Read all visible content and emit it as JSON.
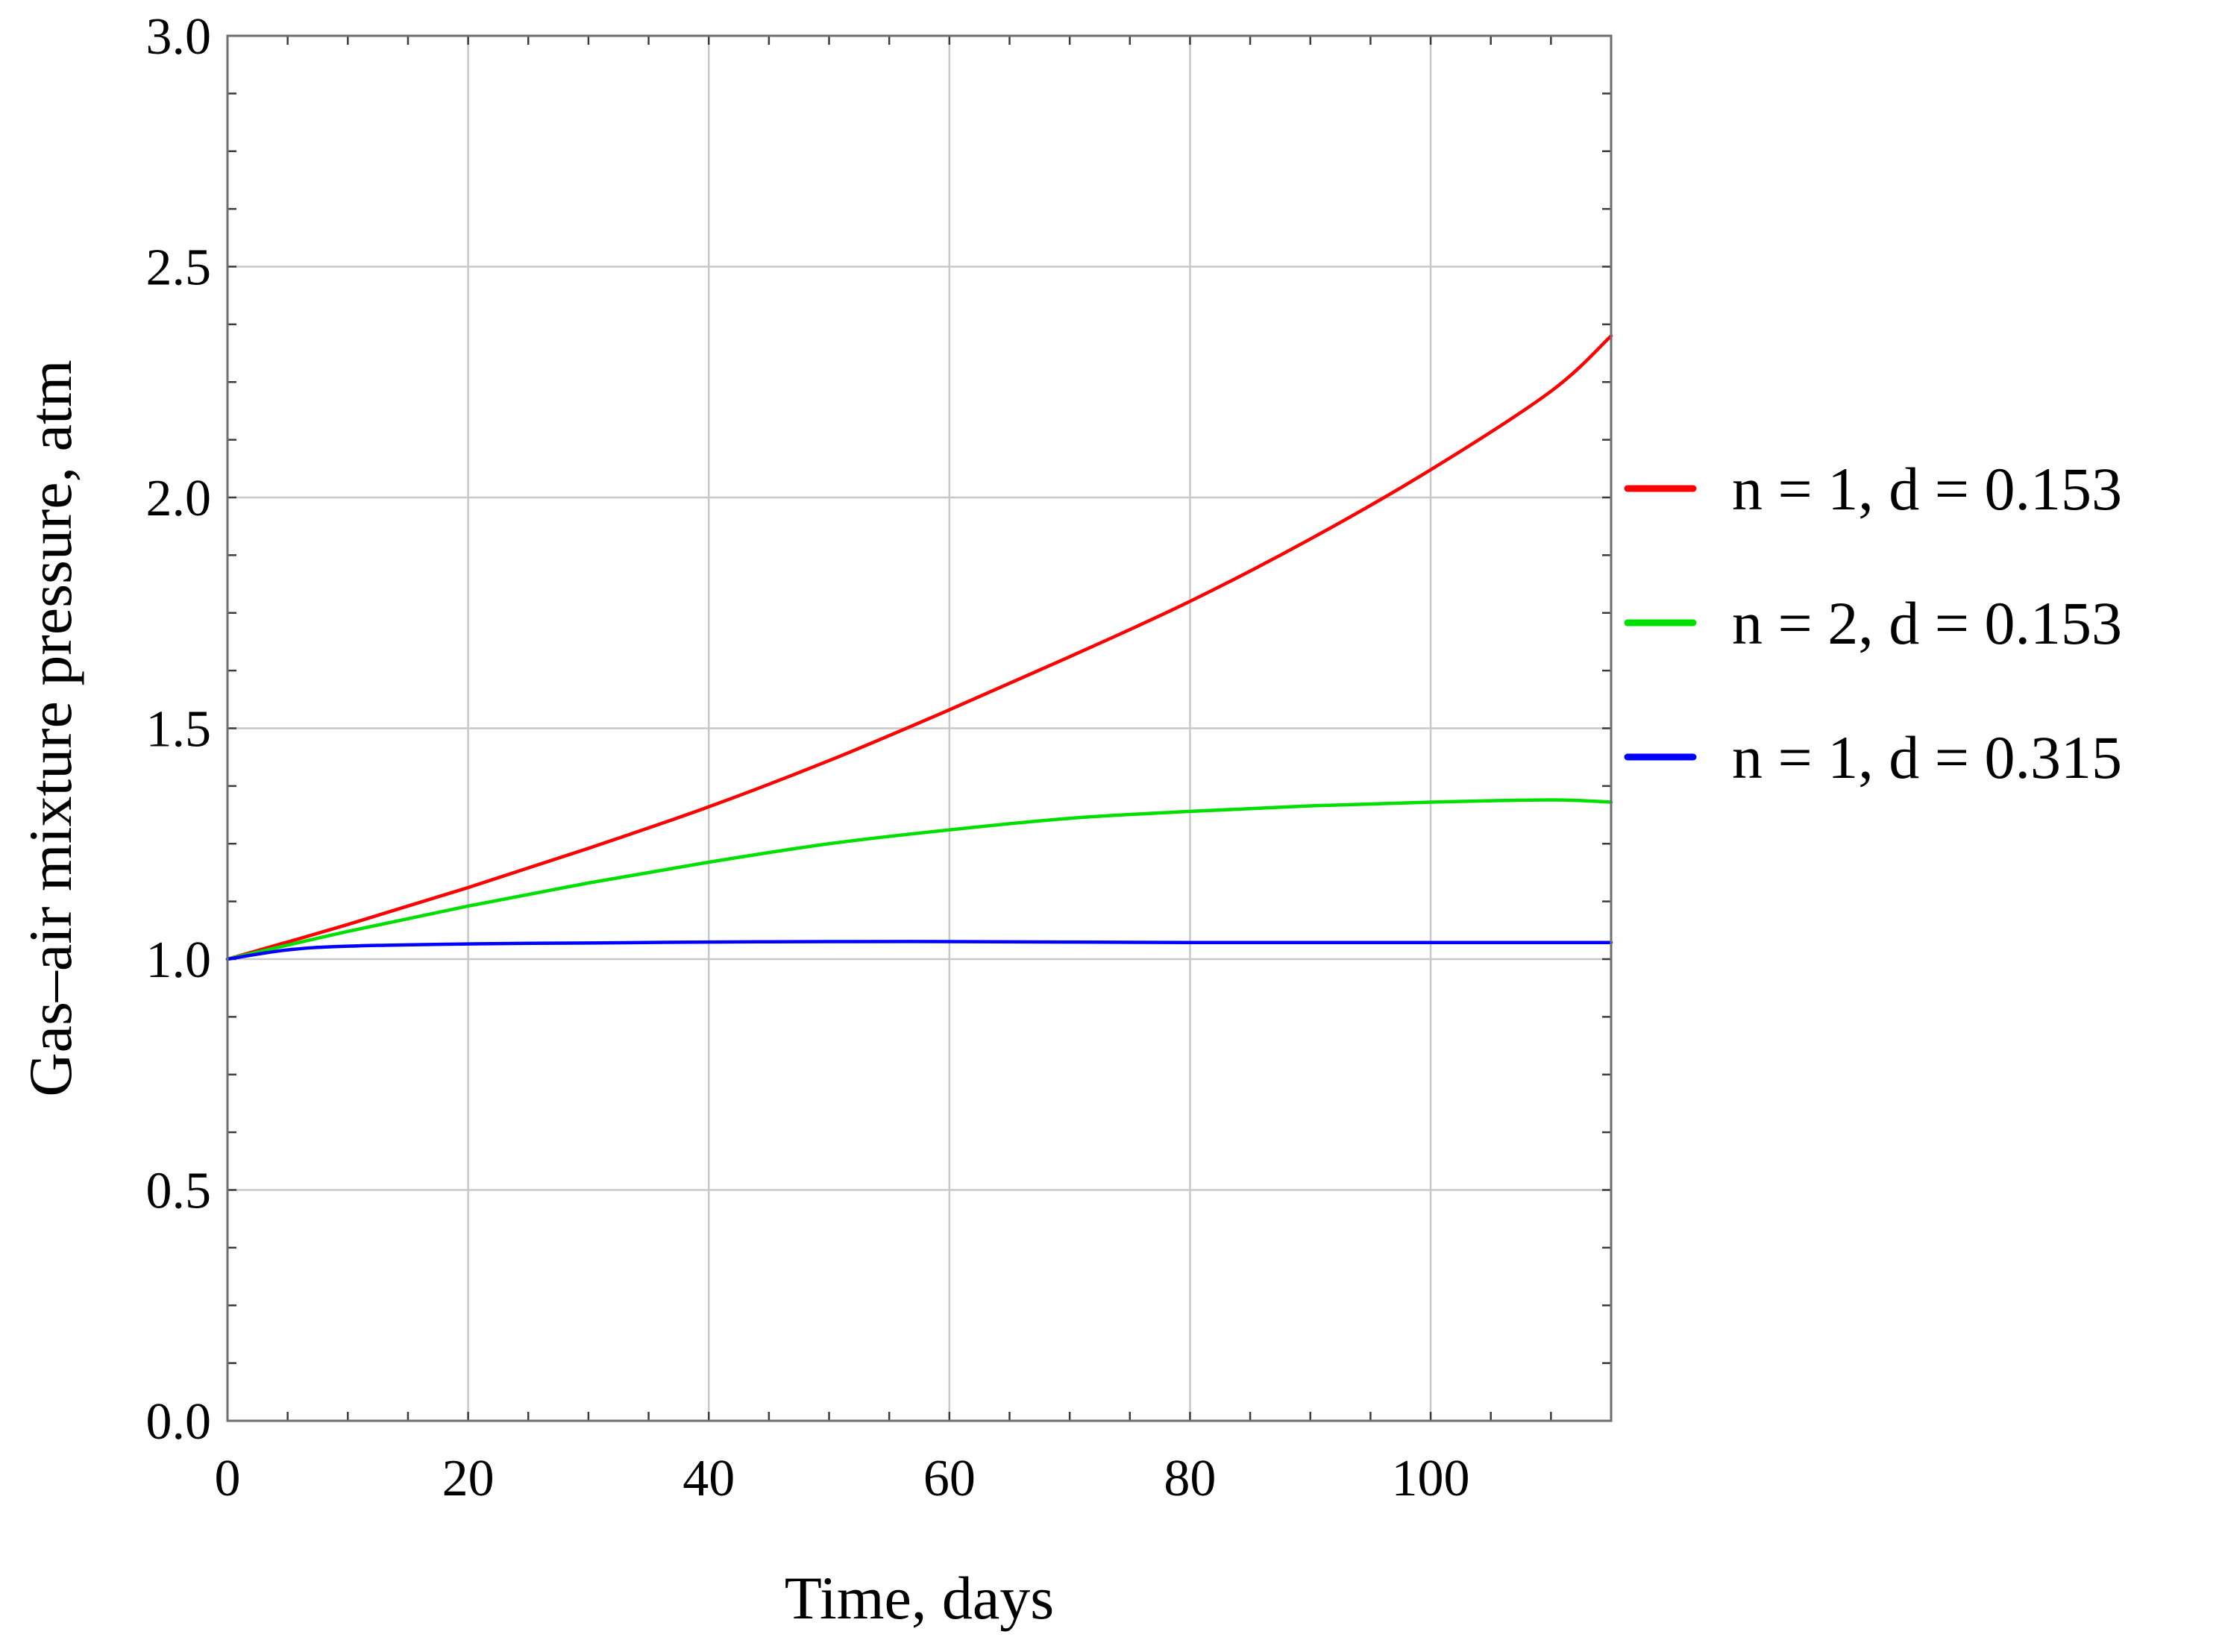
{
  "chart_data": {
    "type": "line",
    "title": "",
    "xlabel": "Time, days",
    "ylabel": "Gas–air mixture pressure, atm",
    "xlim": [
      0,
      115
    ],
    "ylim": [
      0,
      3
    ],
    "x_ticks": [
      0,
      20,
      40,
      60,
      80,
      100
    ],
    "x_tick_labels": [
      "0",
      "20",
      "40",
      "60",
      "80",
      "100"
    ],
    "y_ticks": [
      0,
      0.5,
      1,
      1.5,
      2,
      2.5,
      3
    ],
    "y_tick_labels": [
      "0.0",
      "0.5",
      "1.0",
      "1.5",
      "2.0",
      "2.5",
      "3.0"
    ],
    "grid": true,
    "legend_position": "right",
    "series": [
      {
        "name": "n = 1, d = 0.153",
        "color": "#ff0000",
        "x": [
          0,
          10,
          20,
          30,
          40,
          50,
          60,
          70,
          80,
          90,
          100,
          110,
          115
        ],
        "y": [
          1.0,
          1.075,
          1.155,
          1.24,
          1.33,
          1.43,
          1.54,
          1.655,
          1.775,
          1.91,
          2.06,
          2.23,
          2.35
        ]
      },
      {
        "name": "n = 2, d = 0.153",
        "color": "#00e000",
        "x": [
          0,
          10,
          20,
          30,
          40,
          50,
          60,
          70,
          80,
          90,
          100,
          110,
          115
        ],
        "y": [
          1.0,
          1.06,
          1.115,
          1.165,
          1.21,
          1.25,
          1.28,
          1.305,
          1.32,
          1.332,
          1.34,
          1.345,
          1.34
        ]
      },
      {
        "name": "n = 1, d = 0.315",
        "color": "#0000ff",
        "x": [
          0,
          5,
          10,
          20,
          30,
          40,
          50,
          60,
          70,
          80,
          90,
          100,
          110,
          115
        ],
        "y": [
          1.0,
          1.02,
          1.028,
          1.033,
          1.035,
          1.037,
          1.038,
          1.038,
          1.037,
          1.036,
          1.036,
          1.036,
          1.036,
          1.036
        ]
      }
    ]
  }
}
